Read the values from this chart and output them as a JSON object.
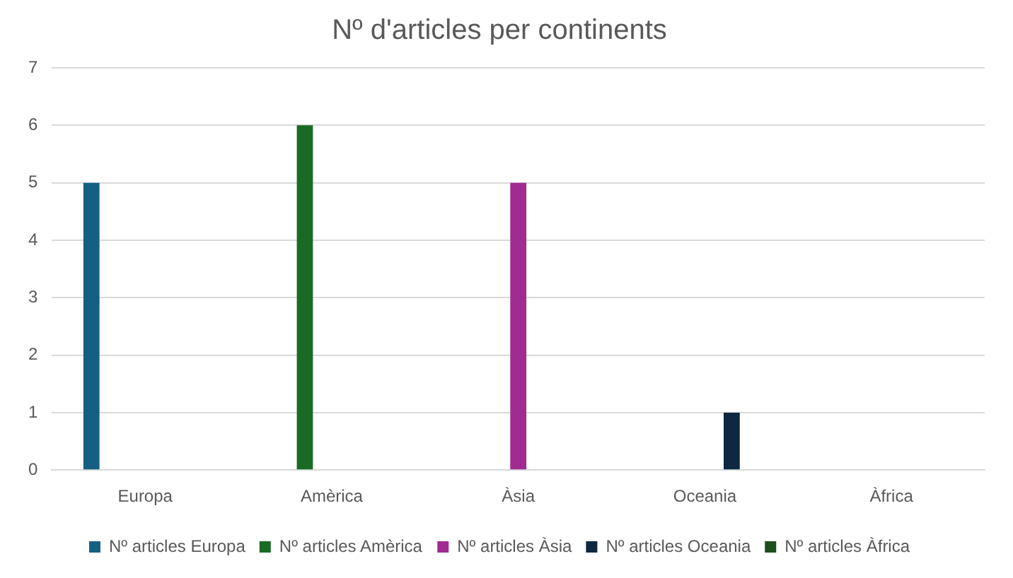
{
  "chart_data": {
    "type": "bar",
    "title": "Nº d'articles per continents",
    "categories": [
      "Europa",
      "Amèrica",
      "Àsia",
      "Oceania",
      "Àfrica"
    ],
    "series": [
      {
        "name": "Nº articles Europa",
        "color": "#156082",
        "values": [
          5,
          null,
          null,
          null,
          null
        ]
      },
      {
        "name": "Nº articles Amèrica",
        "color": "#196b24",
        "values": [
          null,
          6,
          null,
          null,
          null
        ]
      },
      {
        "name": "Nº articles Àsia",
        "color": "#a02b93",
        "values": [
          null,
          null,
          5,
          null,
          null
        ]
      },
      {
        "name": "Nº articles Oceania",
        "color": "#0e2841",
        "values": [
          null,
          null,
          null,
          1,
          null
        ]
      },
      {
        "name": "Nº articles Àfrica",
        "color": "#1e4d1e",
        "values": [
          null,
          null,
          null,
          null,
          0
        ]
      }
    ],
    "ylim": [
      0,
      7
    ],
    "yticks": [
      0,
      1,
      2,
      3,
      4,
      5,
      6,
      7
    ],
    "grid": "y",
    "legend": "bottom"
  }
}
